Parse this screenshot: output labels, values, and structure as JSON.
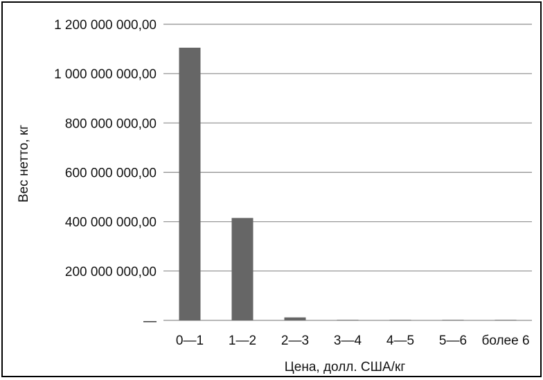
{
  "chart_data": {
    "type": "bar",
    "categories": [
      "0—1",
      "1—2",
      "2—3",
      "3—4",
      "4—5",
      "5—6",
      "более 6"
    ],
    "values": [
      1105000000,
      415000000,
      12000000,
      2000000,
      2000000,
      2000000,
      2000000
    ],
    "xlabel": "Цена, долл. США/кг",
    "ylabel": "Вес нетто, кг",
    "ylim": [
      0,
      1200000000
    ],
    "yticks": [
      0,
      200000000,
      400000000,
      600000000,
      800000000,
      1000000000,
      1200000000
    ],
    "ytick_labels": [
      "—",
      "200 000 000,00",
      "400 000 000,00",
      "600 000 000,00",
      "800 000 000,00",
      "1 000 000 000,00",
      "1 200 000 000,00"
    ],
    "grid": true,
    "bar_color": "#666666",
    "grid_color": "#8c8c8c"
  }
}
